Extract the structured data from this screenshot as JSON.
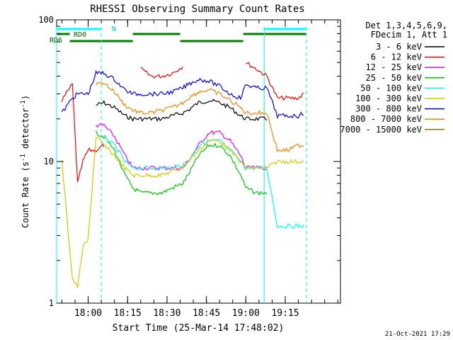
{
  "chart_data": {
    "type": "line",
    "title": "RHESSI Observing Summary Count Rates",
    "xlabel": "Start Time (25-Mar-14 17:48:02)",
    "ylabel": "Count Rate (s⁻¹ detector⁻¹)",
    "ylabel_parts": {
      "main": "Count Rate (s",
      "sup1": "-1",
      "mid": " detector",
      "sup2": "-1",
      "end": ")"
    },
    "yscale": "log",
    "ylim": [
      1,
      100
    ],
    "yticks": [
      {
        "value": 1,
        "label": "1"
      },
      {
        "value": 10,
        "label": "10"
      },
      {
        "value": 100,
        "label": "100"
      }
    ],
    "xlim": [
      "17:48",
      "19:36"
    ],
    "xticks": [
      {
        "value": "18:00",
        "label": "18:00"
      },
      {
        "value": "18:15",
        "label": "18:15"
      },
      {
        "value": "18:30",
        "label": "18:30"
      },
      {
        "value": "18:45",
        "label": "18:45"
      },
      {
        "value": "19:00",
        "label": "19:00"
      },
      {
        "value": "19:15",
        "label": "19:15"
      }
    ],
    "legend_header": [
      "Det 1,3,4,5,6,9,",
      "FDecim 1, Att 1"
    ],
    "legend_position": "right",
    "series": [
      {
        "name": "3 - 6 keV",
        "color": "#000000",
        "x": [
          "17:50",
          "17:54",
          "17:56",
          "17:58",
          "18:00",
          "18:03",
          "18:06",
          "18:10",
          "18:14",
          "18:17",
          "18:20",
          "18:24",
          "18:28",
          "18:32",
          "18:36",
          "18:38",
          "18:42",
          "18:46",
          "18:50",
          "18:54",
          "18:58",
          "19:00",
          "19:04",
          "19:08",
          "19:12",
          "19:16",
          "19:20",
          "19:22"
        ],
        "values": [
          null,
          null,
          null,
          null,
          null,
          25,
          26,
          24,
          21,
          20,
          20,
          20,
          20,
          21,
          22,
          23,
          26,
          27,
          26,
          24,
          21,
          20,
          20,
          20,
          null,
          null,
          null,
          null
        ]
      },
      {
        "name": "6 - 12 keV",
        "color": "#ff0000",
        "x": [
          "17:50",
          "17:54",
          "17:56",
          "17:58",
          "18:00",
          "18:03",
          "18:06",
          "18:10",
          "18:14",
          "18:17",
          "18:20",
          "18:24",
          "18:28",
          "18:32",
          "18:36",
          "18:38",
          "18:42",
          "18:46",
          "18:50",
          "18:54",
          "18:58",
          "19:00",
          "19:04",
          "19:08",
          "19:12",
          "19:16",
          "19:20",
          "19:22"
        ],
        "values": [
          27,
          35,
          7,
          10,
          12,
          12,
          13,
          null,
          null,
          null,
          45,
          40,
          40,
          42,
          47,
          null,
          null,
          null,
          null,
          null,
          null,
          50,
          45,
          40,
          28,
          28,
          28,
          30
        ]
      },
      {
        "name": "12 - 25 keV",
        "color": "#ff00ff",
        "x": [
          "17:50",
          "17:54",
          "17:56",
          "17:58",
          "18:00",
          "18:03",
          "18:06",
          "18:10",
          "18:14",
          "18:17",
          "18:20",
          "18:24",
          "18:28",
          "18:32",
          "18:36",
          "18:38",
          "18:42",
          "18:46",
          "18:50",
          "18:54",
          "18:58",
          "19:00",
          "19:04",
          "19:08",
          "19:12",
          "19:16",
          "19:20",
          "19:22"
        ],
        "values": [
          null,
          null,
          null,
          null,
          null,
          18,
          18,
          15,
          11,
          9,
          9,
          9,
          9,
          9,
          9,
          10,
          13,
          16,
          16,
          14,
          11,
          9,
          9,
          9,
          null,
          null,
          null,
          null
        ]
      },
      {
        "name": "25 - 50 keV",
        "color": "#00cc00",
        "x": [
          "17:50",
          "17:54",
          "17:56",
          "17:58",
          "18:00",
          "18:03",
          "18:06",
          "18:10",
          "18:14",
          "18:17",
          "18:20",
          "18:24",
          "18:28",
          "18:32",
          "18:36",
          "18:38",
          "18:42",
          "18:46",
          "18:50",
          "18:54",
          "18:58",
          "19:00",
          "19:04",
          "19:08",
          "19:12",
          "19:16",
          "19:20",
          "19:22"
        ],
        "values": [
          null,
          null,
          null,
          null,
          null,
          16,
          15,
          12,
          8,
          6.5,
          6,
          6,
          6,
          6.5,
          7,
          8,
          11,
          13,
          13,
          11,
          8,
          6.5,
          6,
          6,
          null,
          null,
          null,
          null
        ]
      },
      {
        "name": "50 - 100 keV",
        "color": "#00ffff",
        "x": [
          "17:50",
          "17:54",
          "17:56",
          "17:58",
          "18:00",
          "18:03",
          "18:06",
          "18:10",
          "18:14",
          "18:17",
          "18:20",
          "18:24",
          "18:28",
          "18:32",
          "18:36",
          "18:38",
          "18:42",
          "18:46",
          "18:50",
          "18:54",
          "18:58",
          "19:00",
          "19:04",
          "19:08",
          "19:12",
          "19:16",
          "19:20",
          "19:22"
        ],
        "values": [
          3.5,
          null,
          null,
          null,
          null,
          null,
          15,
          13,
          10,
          9,
          9,
          9,
          9,
          9,
          9.5,
          10,
          13,
          14,
          14,
          12,
          10,
          9,
          9,
          9,
          3.5,
          3.5,
          3.5,
          3.5
        ]
      },
      {
        "name": "100 - 300 keV",
        "color": "#cccc00",
        "x": [
          "17:50",
          "17:54",
          "17:56",
          "17:58",
          "18:00",
          "18:03",
          "18:06",
          "18:10",
          "18:14",
          "18:17",
          "18:20",
          "18:24",
          "18:28",
          "18:32",
          "18:36",
          "18:38",
          "18:42",
          "18:46",
          "18:50",
          "18:54",
          "18:58",
          "19:00",
          "19:04",
          "19:08",
          "19:12",
          "19:16",
          "19:20",
          "19:22"
        ],
        "values": [
          10,
          1.5,
          1.3,
          2.5,
          2.8,
          15,
          13,
          11,
          9,
          8,
          8,
          8,
          8,
          8.5,
          9,
          10,
          12,
          14,
          14,
          12,
          10,
          9,
          9,
          9,
          10,
          10,
          10,
          10
        ]
      },
      {
        "name": "300 - 800 keV",
        "color": "#0000ff",
        "x": [
          "17:50",
          "17:54",
          "17:56",
          "17:58",
          "18:00",
          "18:03",
          "18:06",
          "18:10",
          "18:14",
          "18:17",
          "18:20",
          "18:24",
          "18:28",
          "18:32",
          "18:36",
          "18:38",
          "18:42",
          "18:46",
          "18:50",
          "18:54",
          "18:58",
          "19:00",
          "19:04",
          "19:08",
          "19:12",
          "19:16",
          "19:20",
          "19:22"
        ],
        "values": [
          22,
          28,
          30,
          30,
          30,
          42,
          42,
          38,
          32,
          30,
          30,
          30,
          30,
          31,
          33,
          35,
          38,
          37,
          34,
          30,
          28,
          35,
          33,
          33,
          21,
          21,
          21,
          22
        ]
      },
      {
        "name": "800 - 7000 keV",
        "color": "#ff8000",
        "x": [
          "17:50",
          "17:54",
          "17:56",
          "17:58",
          "18:00",
          "18:03",
          "18:06",
          "18:10",
          "18:14",
          "18:17",
          "18:20",
          "18:24",
          "18:28",
          "18:32",
          "18:36",
          "18:38",
          "18:42",
          "18:46",
          "18:50",
          "18:54",
          "18:58",
          "19:00",
          "19:04",
          "19:08",
          "19:12",
          "19:16",
          "19:20",
          "19:22"
        ],
        "values": [
          null,
          null,
          null,
          null,
          null,
          35,
          36,
          31,
          25,
          23,
          22,
          22,
          23,
          24,
          26,
          28,
          31,
          32,
          30,
          27,
          24,
          22,
          22,
          22,
          12,
          12,
          13,
          13
        ]
      },
      {
        "name": "7000 - 15000 keV",
        "color": "#808000",
        "x": [
          "17:50",
          "17:54",
          "17:56",
          "17:58",
          "18:00",
          "18:03",
          "18:06",
          "18:10",
          "18:14",
          "18:17",
          "18:20",
          "18:24",
          "18:28",
          "18:32",
          "18:36",
          "18:38",
          "18:42",
          "18:46",
          "18:50",
          "18:54",
          "18:58",
          "19:00",
          "19:04",
          "19:08",
          "19:12",
          "19:16",
          "19:20",
          "19:22"
        ],
        "values": [
          null,
          null,
          null,
          null,
          null,
          null,
          null,
          null,
          null,
          null,
          null,
          null,
          null,
          null,
          null,
          null,
          null,
          null,
          null,
          null,
          null,
          null,
          null,
          null,
          null,
          null,
          null,
          null
        ]
      }
    ],
    "annotations": {
      "rd0": "RD0",
      "rd6": "RD6",
      "n": "N"
    },
    "vertical_lines_color": "#00ffff",
    "vertical_lines": [
      "17:48",
      "18:05",
      "19:07",
      "19:23"
    ],
    "timestamp": "21-Oct-2021 17:29"
  }
}
